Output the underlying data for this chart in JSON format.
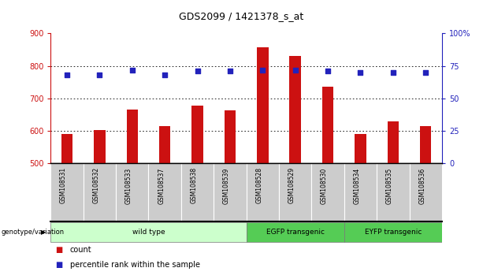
{
  "title": "GDS2099 / 1421378_s_at",
  "samples": [
    "GSM108531",
    "GSM108532",
    "GSM108533",
    "GSM108537",
    "GSM108538",
    "GSM108539",
    "GSM108528",
    "GSM108529",
    "GSM108530",
    "GSM108534",
    "GSM108535",
    "GSM108536"
  ],
  "counts": [
    590,
    603,
    665,
    615,
    678,
    663,
    857,
    830,
    736,
    590,
    630,
    615
  ],
  "percentiles": [
    68,
    68,
    72,
    68,
    71,
    71,
    72,
    72,
    71,
    70,
    70,
    70
  ],
  "ylim_left": [
    500,
    900
  ],
  "ylim_right": [
    0,
    100
  ],
  "yticks_left": [
    500,
    600,
    700,
    800,
    900
  ],
  "yticks_right": [
    0,
    25,
    50,
    75,
    100
  ],
  "groups": [
    {
      "label": "wild type",
      "start": 0,
      "end": 6,
      "color": "#ccffcc"
    },
    {
      "label": "EGFP transgenic",
      "start": 6,
      "end": 9,
      "color": "#55cc55"
    },
    {
      "label": "EYFP transgenic",
      "start": 9,
      "end": 12,
      "color": "#55cc55"
    }
  ],
  "bar_color": "#cc1111",
  "dot_color": "#2222bb",
  "bg_color": "#ffffff",
  "sample_box_color": "#cccccc",
  "grid_color": "#000000",
  "title_color": "#000000",
  "left_axis_color": "#cc1111",
  "right_axis_color": "#2222bb",
  "bar_width": 0.35,
  "dot_size": 15
}
